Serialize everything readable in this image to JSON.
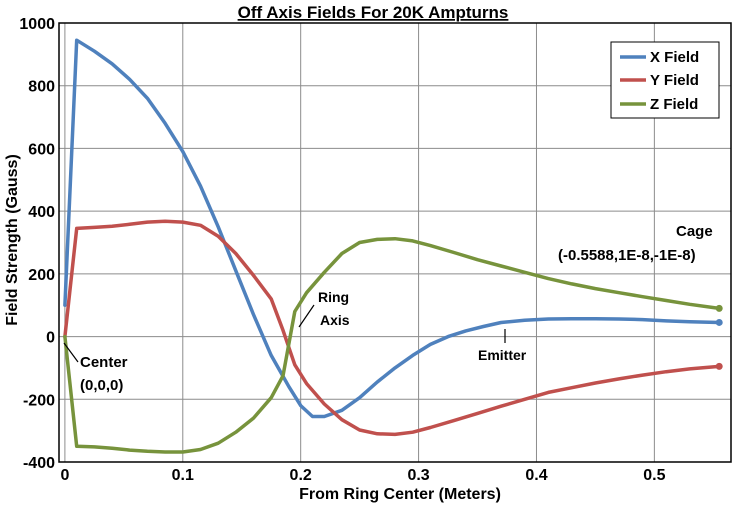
{
  "chart_data": {
    "type": "line",
    "title": "Off Axis Fields For 20K Ampturns",
    "xlabel": "From Ring Center (Meters)",
    "ylabel": "Field Strength (Gauss)",
    "xlim": [
      -0.005,
      0.565
    ],
    "ylim": [
      -400,
      1000
    ],
    "x_ticks": [
      "0",
      "0.1",
      "0.2",
      "0.3",
      "0.4",
      "0.5"
    ],
    "x_tick_values": [
      0,
      0.1,
      0.2,
      0.3,
      0.4,
      0.5
    ],
    "y_ticks": [
      "-400",
      "-200",
      "0",
      "200",
      "400",
      "600",
      "800",
      "1000"
    ],
    "y_tick_values": [
      -400,
      -200,
      0,
      200,
      400,
      600,
      800,
      1000
    ],
    "grid": true,
    "legend_position": "top-right",
    "series": [
      {
        "name": "X Field",
        "color": "#4F81BD",
        "x": [
          0,
          0.01,
          0.025,
          0.04,
          0.055,
          0.07,
          0.085,
          0.1,
          0.115,
          0.13,
          0.145,
          0.16,
          0.175,
          0.19,
          0.2,
          0.21,
          0.22,
          0.235,
          0.25,
          0.265,
          0.28,
          0.295,
          0.31,
          0.325,
          0.34,
          0.355,
          0.37,
          0.39,
          0.41,
          0.43,
          0.45,
          0.47,
          0.49,
          0.51,
          0.53,
          0.555
        ],
        "values": [
          100,
          945,
          910,
          870,
          820,
          760,
          680,
          590,
          480,
          350,
          210,
          70,
          -60,
          -160,
          -220,
          -255,
          -255,
          -235,
          -195,
          -145,
          -100,
          -60,
          -25,
          0,
          18,
          32,
          45,
          52,
          56,
          57,
          57,
          56,
          54,
          50,
          47,
          45
        ]
      },
      {
        "name": "Y Field",
        "color": "#C0504D",
        "x": [
          0,
          0.01,
          0.025,
          0.04,
          0.055,
          0.07,
          0.085,
          0.1,
          0.115,
          0.13,
          0.145,
          0.16,
          0.175,
          0.185,
          0.195,
          0.205,
          0.22,
          0.235,
          0.25,
          0.265,
          0.28,
          0.295,
          0.31,
          0.33,
          0.35,
          0.37,
          0.39,
          0.41,
          0.43,
          0.45,
          0.47,
          0.49,
          0.51,
          0.53,
          0.555
        ],
        "values": [
          0,
          345,
          348,
          352,
          358,
          365,
          368,
          365,
          355,
          320,
          265,
          195,
          120,
          20,
          -90,
          -150,
          -215,
          -265,
          -298,
          -310,
          -312,
          -305,
          -290,
          -268,
          -245,
          -222,
          -200,
          -178,
          -163,
          -148,
          -135,
          -123,
          -112,
          -103,
          -95
        ]
      },
      {
        "name": "Z Field",
        "color": "#77933C",
        "x": [
          0,
          0.01,
          0.025,
          0.04,
          0.055,
          0.07,
          0.085,
          0.1,
          0.115,
          0.13,
          0.145,
          0.16,
          0.175,
          0.185,
          0.195,
          0.205,
          0.22,
          0.235,
          0.25,
          0.265,
          0.28,
          0.295,
          0.31,
          0.33,
          0.35,
          0.37,
          0.39,
          0.41,
          0.43,
          0.45,
          0.47,
          0.49,
          0.51,
          0.53,
          0.555
        ],
        "values": [
          0,
          -350,
          -352,
          -356,
          -362,
          -366,
          -368,
          -368,
          -360,
          -340,
          -305,
          -260,
          -195,
          -125,
          80,
          140,
          205,
          265,
          300,
          310,
          312,
          305,
          290,
          268,
          245,
          225,
          205,
          185,
          168,
          153,
          140,
          127,
          115,
          103,
          90
        ]
      }
    ],
    "annotations": {
      "center_line1": "Center",
      "center_line2": "(0,0,0)",
      "ring_line1": "Ring",
      "ring_line2": "Axis",
      "emitter": "Emitter",
      "cage_line1": "Cage",
      "cage_line2": "(-0.5588,1E-8,-1E-8)"
    }
  }
}
